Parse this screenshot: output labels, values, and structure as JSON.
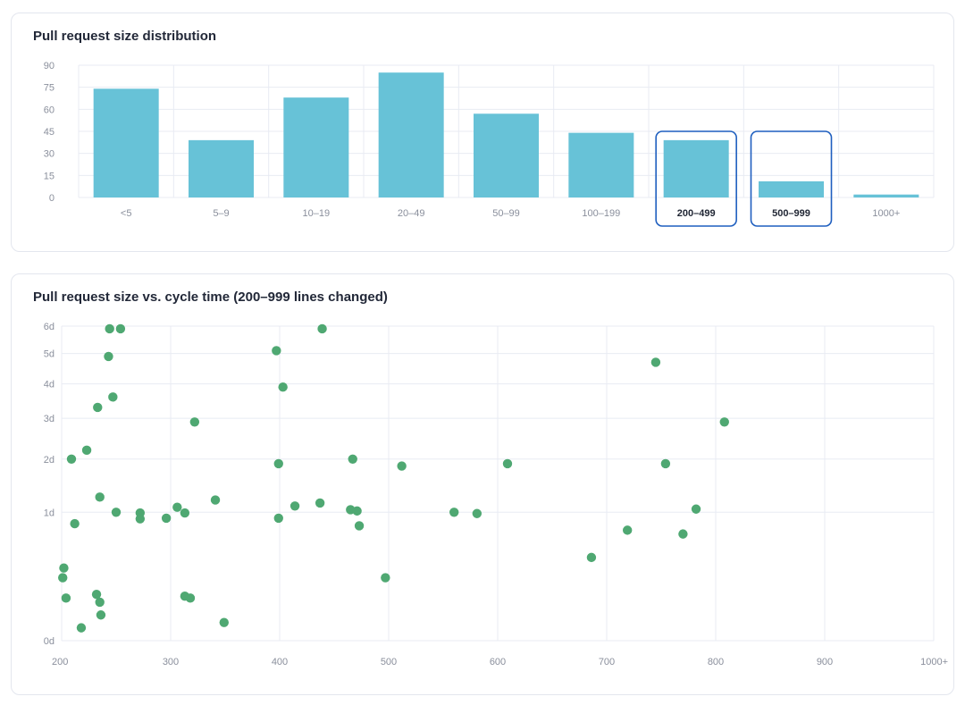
{
  "colors": {
    "bar": "#67c2d7",
    "point": "#4fa872",
    "grid": "#e8ebf3",
    "highlight_border": "#1f5fbf"
  },
  "charts": {
    "distribution_title": "Pull request size distribution",
    "scatter_title": "Pull request size vs. cycle time (200–999 lines changed)"
  },
  "chart_data": [
    {
      "type": "bar",
      "title": "Pull request size distribution",
      "categories": [
        "<5",
        "5–9",
        "10–19",
        "20–49",
        "50–99",
        "100–199",
        "200–499",
        "500–999",
        "1000+"
      ],
      "values": [
        74,
        39,
        68,
        85,
        57,
        44,
        39,
        11,
        2
      ],
      "highlighted": [
        "200–499",
        "500–999"
      ],
      "ylim": [
        0,
        90
      ],
      "yticks": [
        0,
        15,
        30,
        45,
        60,
        75,
        90
      ],
      "grid": true
    },
    {
      "type": "scatter",
      "title": "Pull request size vs. cycle time (200–999 lines changed)",
      "xlim": [
        200,
        1000
      ],
      "xticks": [
        {
          "value": 200,
          "label": "200"
        },
        {
          "value": 300,
          "label": "300"
        },
        {
          "value": 400,
          "label": "400"
        },
        {
          "value": 500,
          "label": "500"
        },
        {
          "value": 600,
          "label": "600"
        },
        {
          "value": 700,
          "label": "700"
        },
        {
          "value": 800,
          "label": "800"
        },
        {
          "value": 900,
          "label": "900"
        },
        {
          "value": 1000,
          "label": "1000+"
        }
      ],
      "ylim_days": [
        0,
        6
      ],
      "yscale": "sqrt",
      "yticks": [
        {
          "value": 0,
          "label": "0d"
        },
        {
          "value": 1,
          "label": "1d"
        },
        {
          "value": 2,
          "label": "2d"
        },
        {
          "value": 3,
          "label": "3d"
        },
        {
          "value": 4,
          "label": "4d"
        },
        {
          "value": 5,
          "label": "5d"
        },
        {
          "value": 6,
          "label": "6d"
        }
      ],
      "grid": true,
      "points": [
        [
          244,
          5.9
        ],
        [
          254,
          5.9
        ],
        [
          397,
          5.1
        ],
        [
          439,
          5.9
        ],
        [
          243,
          4.9
        ],
        [
          745,
          4.7
        ],
        [
          403,
          3.9
        ],
        [
          247,
          3.6
        ],
        [
          233,
          3.3
        ],
        [
          322,
          2.9
        ],
        [
          808,
          2.9
        ],
        [
          223,
          2.2
        ],
        [
          209,
          2.0
        ],
        [
          467,
          2.0
        ],
        [
          399,
          1.9
        ],
        [
          609,
          1.9
        ],
        [
          754,
          1.9
        ],
        [
          512,
          1.85
        ],
        [
          235,
          1.25
        ],
        [
          341,
          1.2
        ],
        [
          437,
          1.15
        ],
        [
          414,
          1.1
        ],
        [
          306,
          1.08
        ],
        [
          782,
          1.05
        ],
        [
          465,
          1.04
        ],
        [
          471,
          1.02
        ],
        [
          250,
          1.0
        ],
        [
          560,
          1.0
        ],
        [
          272,
          0.99
        ],
        [
          313,
          0.99
        ],
        [
          581,
          0.98
        ],
        [
          296,
          0.91
        ],
        [
          272,
          0.9
        ],
        [
          399,
          0.91
        ],
        [
          212,
          0.83
        ],
        [
          473,
          0.8
        ],
        [
          719,
          0.74
        ],
        [
          770,
          0.69
        ],
        [
          686,
          0.42
        ],
        [
          202,
          0.32
        ],
        [
          201,
          0.24
        ],
        [
          497,
          0.24
        ],
        [
          204,
          0.11
        ],
        [
          232,
          0.13
        ],
        [
          235,
          0.09
        ],
        [
          313,
          0.12
        ],
        [
          318,
          0.11
        ],
        [
          236,
          0.04
        ],
        [
          218,
          0.01
        ],
        [
          349,
          0.02
        ]
      ]
    }
  ]
}
